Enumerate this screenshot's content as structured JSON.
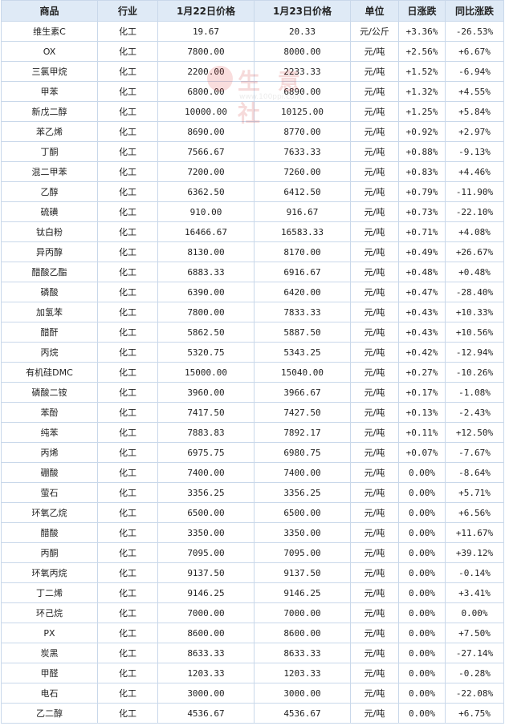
{
  "watermark": {
    "text": "生 意 社",
    "url": "www.100ppi.com"
  },
  "table": {
    "headers": {
      "product": "商品",
      "industry": "行业",
      "price_jan22": "1月22日价格",
      "price_jan23": "1月23日价格",
      "unit": "单位",
      "daily_change": "日涨跌",
      "yoy_change": "同比涨跌"
    },
    "rows": [
      {
        "product": "维生素C",
        "industry": "化工",
        "price_jan22": "19.67",
        "price_jan23": "20.33",
        "unit": "元/公斤",
        "daily_change": "+3.36%",
        "yoy_change": "-26.53%"
      },
      {
        "product": "OX",
        "industry": "化工",
        "price_jan22": "7800.00",
        "price_jan23": "8000.00",
        "unit": "元/吨",
        "daily_change": "+2.56%",
        "yoy_change": "+6.67%"
      },
      {
        "product": "三氯甲烷",
        "industry": "化工",
        "price_jan22": "2200.00",
        "price_jan23": "2233.33",
        "unit": "元/吨",
        "daily_change": "+1.52%",
        "yoy_change": "-6.94%"
      },
      {
        "product": "甲苯",
        "industry": "化工",
        "price_jan22": "6800.00",
        "price_jan23": "6890.00",
        "unit": "元/吨",
        "daily_change": "+1.32%",
        "yoy_change": "+4.55%"
      },
      {
        "product": "新戊二醇",
        "industry": "化工",
        "price_jan22": "10000.00",
        "price_jan23": "10125.00",
        "unit": "元/吨",
        "daily_change": "+1.25%",
        "yoy_change": "+5.84%"
      },
      {
        "product": "苯乙烯",
        "industry": "化工",
        "price_jan22": "8690.00",
        "price_jan23": "8770.00",
        "unit": "元/吨",
        "daily_change": "+0.92%",
        "yoy_change": "+2.97%"
      },
      {
        "product": "丁酮",
        "industry": "化工",
        "price_jan22": "7566.67",
        "price_jan23": "7633.33",
        "unit": "元/吨",
        "daily_change": "+0.88%",
        "yoy_change": "-9.13%"
      },
      {
        "product": "混二甲苯",
        "industry": "化工",
        "price_jan22": "7200.00",
        "price_jan23": "7260.00",
        "unit": "元/吨",
        "daily_change": "+0.83%",
        "yoy_change": "+4.46%"
      },
      {
        "product": "乙醇",
        "industry": "化工",
        "price_jan22": "6362.50",
        "price_jan23": "6412.50",
        "unit": "元/吨",
        "daily_change": "+0.79%",
        "yoy_change": "-11.90%"
      },
      {
        "product": "硫磺",
        "industry": "化工",
        "price_jan22": "910.00",
        "price_jan23": "916.67",
        "unit": "元/吨",
        "daily_change": "+0.73%",
        "yoy_change": "-22.10%"
      },
      {
        "product": "钛白粉",
        "industry": "化工",
        "price_jan22": "16466.67",
        "price_jan23": "16583.33",
        "unit": "元/吨",
        "daily_change": "+0.71%",
        "yoy_change": "+4.08%"
      },
      {
        "product": "异丙醇",
        "industry": "化工",
        "price_jan22": "8130.00",
        "price_jan23": "8170.00",
        "unit": "元/吨",
        "daily_change": "+0.49%",
        "yoy_change": "+26.67%"
      },
      {
        "product": "醋酸乙酯",
        "industry": "化工",
        "price_jan22": "6883.33",
        "price_jan23": "6916.67",
        "unit": "元/吨",
        "daily_change": "+0.48%",
        "yoy_change": "+0.48%"
      },
      {
        "product": "磷酸",
        "industry": "化工",
        "price_jan22": "6390.00",
        "price_jan23": "6420.00",
        "unit": "元/吨",
        "daily_change": "+0.47%",
        "yoy_change": "-28.40%"
      },
      {
        "product": "加氢苯",
        "industry": "化工",
        "price_jan22": "7800.00",
        "price_jan23": "7833.33",
        "unit": "元/吨",
        "daily_change": "+0.43%",
        "yoy_change": "+10.33%"
      },
      {
        "product": "醋酐",
        "industry": "化工",
        "price_jan22": "5862.50",
        "price_jan23": "5887.50",
        "unit": "元/吨",
        "daily_change": "+0.43%",
        "yoy_change": "+10.56%"
      },
      {
        "product": "丙烷",
        "industry": "化工",
        "price_jan22": "5320.75",
        "price_jan23": "5343.25",
        "unit": "元/吨",
        "daily_change": "+0.42%",
        "yoy_change": "-12.94%"
      },
      {
        "product": "有机硅DMC",
        "industry": "化工",
        "price_jan22": "15000.00",
        "price_jan23": "15040.00",
        "unit": "元/吨",
        "daily_change": "+0.27%",
        "yoy_change": "-10.26%"
      },
      {
        "product": "磷酸二铵",
        "industry": "化工",
        "price_jan22": "3960.00",
        "price_jan23": "3966.67",
        "unit": "元/吨",
        "daily_change": "+0.17%",
        "yoy_change": "-1.08%"
      },
      {
        "product": "苯酚",
        "industry": "化工",
        "price_jan22": "7417.50",
        "price_jan23": "7427.50",
        "unit": "元/吨",
        "daily_change": "+0.13%",
        "yoy_change": "-2.43%"
      },
      {
        "product": "纯苯",
        "industry": "化工",
        "price_jan22": "7883.83",
        "price_jan23": "7892.17",
        "unit": "元/吨",
        "daily_change": "+0.11%",
        "yoy_change": "+12.50%"
      },
      {
        "product": "丙烯",
        "industry": "化工",
        "price_jan22": "6975.75",
        "price_jan23": "6980.75",
        "unit": "元/吨",
        "daily_change": "+0.07%",
        "yoy_change": "-7.67%"
      },
      {
        "product": "硼酸",
        "industry": "化工",
        "price_jan22": "7400.00",
        "price_jan23": "7400.00",
        "unit": "元/吨",
        "daily_change": "0.00%",
        "yoy_change": "-8.64%"
      },
      {
        "product": "萤石",
        "industry": "化工",
        "price_jan22": "3356.25",
        "price_jan23": "3356.25",
        "unit": "元/吨",
        "daily_change": "0.00%",
        "yoy_change": "+5.71%"
      },
      {
        "product": "环氧乙烷",
        "industry": "化工",
        "price_jan22": "6500.00",
        "price_jan23": "6500.00",
        "unit": "元/吨",
        "daily_change": "0.00%",
        "yoy_change": "+6.56%"
      },
      {
        "product": "醋酸",
        "industry": "化工",
        "price_jan22": "3350.00",
        "price_jan23": "3350.00",
        "unit": "元/吨",
        "daily_change": "0.00%",
        "yoy_change": "+11.67%"
      },
      {
        "product": "丙酮",
        "industry": "化工",
        "price_jan22": "7095.00",
        "price_jan23": "7095.00",
        "unit": "元/吨",
        "daily_change": "0.00%",
        "yoy_change": "+39.12%"
      },
      {
        "product": "环氧丙烷",
        "industry": "化工",
        "price_jan22": "9137.50",
        "price_jan23": "9137.50",
        "unit": "元/吨",
        "daily_change": "0.00%",
        "yoy_change": "-0.14%"
      },
      {
        "product": "丁二烯",
        "industry": "化工",
        "price_jan22": "9146.25",
        "price_jan23": "9146.25",
        "unit": "元/吨",
        "daily_change": "0.00%",
        "yoy_change": "+3.41%"
      },
      {
        "product": "环己烷",
        "industry": "化工",
        "price_jan22": "7000.00",
        "price_jan23": "7000.00",
        "unit": "元/吨",
        "daily_change": "0.00%",
        "yoy_change": "0.00%"
      },
      {
        "product": "PX",
        "industry": "化工",
        "price_jan22": "8600.00",
        "price_jan23": "8600.00",
        "unit": "元/吨",
        "daily_change": "0.00%",
        "yoy_change": "+7.50%"
      },
      {
        "product": "炭黑",
        "industry": "化工",
        "price_jan22": "8633.33",
        "price_jan23": "8633.33",
        "unit": "元/吨",
        "daily_change": "0.00%",
        "yoy_change": "-27.14%"
      },
      {
        "product": "甲醛",
        "industry": "化工",
        "price_jan22": "1203.33",
        "price_jan23": "1203.33",
        "unit": "元/吨",
        "daily_change": "0.00%",
        "yoy_change": "-0.28%"
      },
      {
        "product": "电石",
        "industry": "化工",
        "price_jan22": "3000.00",
        "price_jan23": "3000.00",
        "unit": "元/吨",
        "daily_change": "0.00%",
        "yoy_change": "-22.08%"
      },
      {
        "product": "乙二醇",
        "industry": "化工",
        "price_jan22": "4536.67",
        "price_jan23": "4536.67",
        "unit": "元/吨",
        "daily_change": "0.00%",
        "yoy_change": "+6.75%"
      }
    ]
  },
  "colors": {
    "up": "#e02020",
    "down": "#138a13",
    "flat": "#222222",
    "header_bg": "#dfeaf6",
    "border": "#c9d8ea",
    "link": "#1f5fa8"
  }
}
